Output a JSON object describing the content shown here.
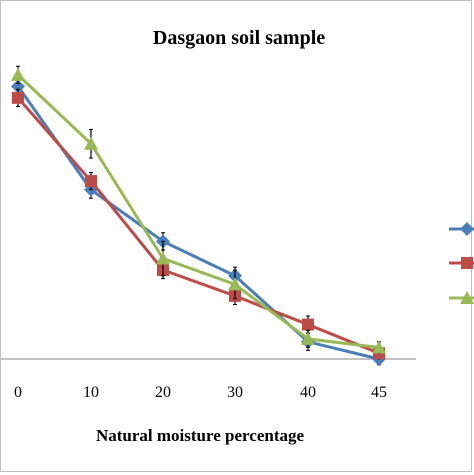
{
  "chart_data": {
    "type": "line",
    "title": "Dasgaon soil sample",
    "xlabel": "Natural moisture percentage",
    "ylabel": "",
    "x": [
      0,
      10,
      20,
      30,
      40,
      45
    ],
    "ylim": [
      0,
      100
    ],
    "grid": false,
    "legend_position": "right",
    "series": [
      {
        "values": [
          95,
          59,
          41,
          29,
          6,
          0
        ],
        "color": "#4a7ebb",
        "marker": "diamond",
        "error": [
          3,
          3,
          3,
          3,
          3,
          2
        ]
      },
      {
        "values": [
          91,
          62,
          31,
          22,
          12,
          2
        ],
        "color": "#be4b48",
        "marker": "square",
        "error": [
          3,
          3,
          3,
          3,
          3,
          2
        ]
      },
      {
        "values": [
          99,
          75,
          35,
          26,
          7,
          4
        ],
        "color": "#98b954",
        "marker": "triangle",
        "error": [
          3,
          5,
          6,
          5,
          3,
          2
        ]
      }
    ]
  }
}
